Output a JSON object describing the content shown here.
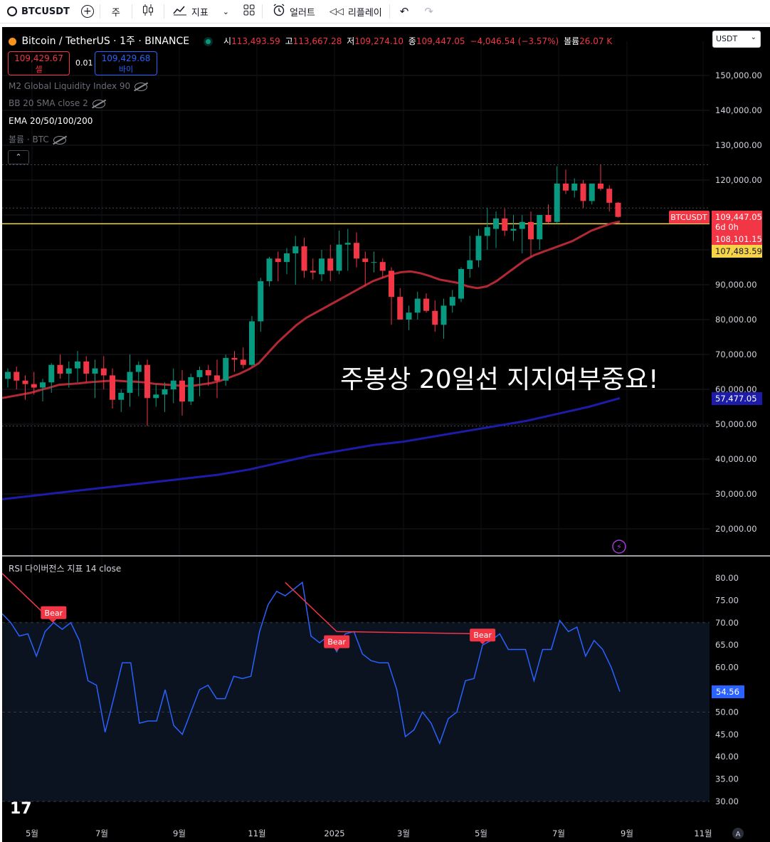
{
  "toolbar": {
    "symbol": "BTCUSDT",
    "interval": "주",
    "indicators_label": "지표",
    "alert_label": "얼러트",
    "replay_label": "리플레이"
  },
  "legend": {
    "title": "Bitcoin / TetherUS · 1주 · BINANCE",
    "open_label": "시",
    "open": "113,493.59",
    "high_label": "고",
    "high": "113,667.28",
    "low_label": "저",
    "low": "109,274.10",
    "close_label": "종",
    "close": "109,447.05",
    "change": "−4,046.54 (−3.57%)",
    "volume_label": "볼륨",
    "volume": "26.07 K",
    "sell_price": "109,429.67",
    "sell_label": "셀",
    "spread": "0.01",
    "buy_price": "109,429.68",
    "buy_label": "바이",
    "indicator1": "M2 Global Liquidity Index 90",
    "indicator2": "BB 20 SMA close 2",
    "indicator3": "EMA 20/50/100/200",
    "indicator4": "볼륨 · BTC",
    "currency": "USDT"
  },
  "price_labels": {
    "symbol_tag": "BTCUSDT",
    "last_price": "109,447.05",
    "countdown": "6d 0h",
    "ema20": "108,101.15",
    "hline": "107,483.59",
    "ema200": "57,477.05"
  },
  "annotation": "주봉상 20일선 지지여부중요!",
  "rsi": {
    "title": "RSI 다이버전스 지표 14 close",
    "last": "54.56",
    "bear_label": "Bear"
  },
  "colors": {
    "up": "#089981",
    "down": "#f23645",
    "ema20": "#b22833",
    "ema200": "#1c1ca8",
    "hline": "#f5d547",
    "rsi_line": "#2962ff",
    "bear": "#f23645"
  },
  "chart_data": [
    {
      "type": "candlestick",
      "title": "Bitcoin / TetherUS · 1주 · BINANCE",
      "y_ticks": [
        20000,
        30000,
        40000,
        50000,
        60000,
        70000,
        80000,
        90000,
        100000,
        110000,
        120000,
        130000,
        140000,
        150000
      ],
      "y_tick_labels": [
        "20,000.00",
        "30,000.00",
        "40,000.00",
        "50,000.00",
        "60,000.00",
        "70,000.00",
        "80,000.00",
        "90,000.00",
        "100,000.00",
        "110,000.00",
        "120,000.00",
        "130,000.00",
        "140,000.00",
        "150,000.00"
      ],
      "x_tick_labels": [
        "5월",
        "7월",
        "9월",
        "11월",
        "2025",
        "3월",
        "5월",
        "7월",
        "9월",
        "11월"
      ],
      "ylim": [
        10000,
        158000
      ],
      "candles": [
        [
          63000,
          66000,
          60500,
          65000
        ],
        [
          65000,
          66500,
          60000,
          62500
        ],
        [
          62500,
          64000,
          57000,
          61500
        ],
        [
          61500,
          65000,
          58500,
          60500
        ],
        [
          60500,
          63000,
          56500,
          62000
        ],
        [
          62000,
          67500,
          59000,
          67000
        ],
        [
          67000,
          70000,
          63000,
          64500
        ],
        [
          64500,
          68000,
          60500,
          66000
        ],
        [
          66000,
          71000,
          62000,
          68000
        ],
        [
          68000,
          69500,
          62000,
          64500
        ],
        [
          64500,
          68500,
          57500,
          66000
        ],
        [
          66000,
          69500,
          60000,
          64000
        ],
        [
          64000,
          66000,
          54500,
          57000
        ],
        [
          57000,
          60000,
          53500,
          59000
        ],
        [
          59000,
          70000,
          55000,
          65000
        ],
        [
          65000,
          68000,
          58000,
          67000
        ],
        [
          67000,
          68500,
          49500,
          57500
        ],
        [
          57500,
          61500,
          55000,
          58500
        ],
        [
          58500,
          62000,
          53500,
          60000
        ],
        [
          60000,
          66000,
          56000,
          62500
        ],
        [
          62500,
          65500,
          52500,
          56500
        ],
        [
          56500,
          64500,
          55500,
          63500
        ],
        [
          63500,
          66500,
          58000,
          65500
        ],
        [
          65500,
          67000,
          61000,
          64000
        ],
        [
          64000,
          68500,
          57500,
          62500
        ],
        [
          62500,
          70000,
          61000,
          69000
        ],
        [
          69000,
          71000,
          65000,
          68500
        ],
        [
          68500,
          72000,
          66000,
          67000
        ],
        [
          67000,
          81000,
          66500,
          79500
        ],
        [
          79500,
          92000,
          76500,
          91000
        ],
        [
          91000,
          98000,
          89500,
          97500
        ],
        [
          97500,
          99500,
          91000,
          96500
        ],
        [
          96500,
          100500,
          93000,
          99000
        ],
        [
          99000,
          104000,
          90000,
          101000
        ],
        [
          101000,
          103500,
          92000,
          94000
        ],
        [
          94000,
          97500,
          91500,
          93500
        ],
        [
          93000,
          100000,
          91000,
          97500
        ],
        [
          97500,
          101500,
          91000,
          94000
        ],
        [
          94000,
          105500,
          93000,
          101500
        ],
        [
          101500,
          106000,
          94000,
          102000
        ],
        [
          102000,
          105000,
          95000,
          97500
        ],
        [
          97500,
          99500,
          89500,
          96500
        ],
        [
          96500,
          99500,
          93500,
          96500
        ],
        [
          96500,
          97500,
          92000,
          94000
        ],
        [
          94000,
          95000,
          78500,
          86500
        ],
        [
          86500,
          89000,
          81000,
          80000
        ],
        [
          80000,
          84000,
          77000,
          82000
        ],
        [
          82000,
          88000,
          80000,
          86000
        ],
        [
          86000,
          87500,
          82000,
          82500
        ],
        [
          82500,
          85500,
          76500,
          78500
        ],
        [
          78500,
          86000,
          74500,
          84000
        ],
        [
          84000,
          88500,
          82000,
          86500
        ],
        [
          86000,
          95000,
          85000,
          94500
        ],
        [
          94500,
          104000,
          92000,
          97000
        ],
        [
          97000,
          106000,
          95000,
          104000
        ],
        [
          104000,
          112000,
          100000,
          106500
        ],
        [
          106000,
          111000,
          100500,
          109000
        ],
        [
          109000,
          111800,
          104000,
          105500
        ],
        [
          105500,
          110000,
          102500,
          106000
        ],
        [
          106000,
          110000,
          99000,
          108000
        ],
        [
          108000,
          111000,
          98000,
          103000
        ],
        [
          103000,
          109000,
          100000,
          110000
        ],
        [
          110000,
          113000,
          107500,
          108000
        ],
        [
          108000,
          124000,
          107500,
          119000
        ],
        [
          119000,
          123000,
          116000,
          117000
        ],
        [
          117000,
          120500,
          115000,
          119000
        ],
        [
          119000,
          120000,
          112000,
          114000
        ],
        [
          114000,
          119000,
          113000,
          119000
        ],
        [
          119000,
          124400,
          117000,
          117500
        ],
        [
          117500,
          118500,
          111000,
          113494
        ],
        [
          113494,
          113667,
          109274,
          109447
        ]
      ],
      "ema20": [
        57500,
        58000,
        58500,
        59000,
        59800,
        60500,
        61300,
        61500,
        61700,
        62000,
        62200,
        62400,
        62500,
        62300,
        62200,
        62000,
        61600,
        61400,
        61200,
        61000,
        61000,
        61400,
        61800,
        62500,
        63500,
        64500,
        65800,
        67500,
        70500,
        73500,
        76000,
        78500,
        80500,
        82000,
        83500,
        85000,
        86500,
        88000,
        89500,
        91000,
        92000,
        93000,
        93600,
        93800,
        93300,
        92500,
        91500,
        91000,
        90500,
        89500,
        89000,
        89500,
        91000,
        93000,
        95000,
        97000,
        98500,
        99500,
        100500,
        101500,
        102500,
        104000,
        105500,
        106500,
        107500,
        108100
      ],
      "ema200": [
        28500,
        29500,
        30500,
        31500,
        32500,
        33500,
        34500,
        35500,
        37000,
        39000,
        41000,
        42500,
        44000,
        45000,
        46500,
        48000,
        49500,
        51000,
        53000,
        55000,
        57477
      ],
      "hline": 107483.59
    },
    {
      "type": "line",
      "title": "RSI 다이버전스 지표 14 close",
      "y_ticks": [
        30,
        35,
        40,
        45,
        50,
        55,
        60,
        65,
        70,
        75,
        80
      ],
      "y_tick_labels": [
        "30.00",
        "35.00",
        "40.00",
        "45.00",
        "50.00",
        "55.00",
        "60.00",
        "65.00",
        "70.00",
        "75.00",
        "80.00"
      ],
      "ylim": [
        28.5,
        82
      ],
      "rsi": [
        72,
        70,
        67,
        67.5,
        62.5,
        68,
        70,
        68.5,
        70,
        66,
        57,
        56,
        45.5,
        53,
        61,
        61,
        47.5,
        48,
        48,
        55,
        47,
        45,
        50,
        55,
        56,
        53,
        53,
        58,
        57.5,
        58,
        68,
        74,
        77,
        76,
        77.5,
        79,
        67,
        65.5,
        67,
        63.5,
        67.5,
        68,
        63,
        61.5,
        61,
        61,
        55,
        44.5,
        46,
        50,
        47.5,
        43,
        48.5,
        50,
        57,
        57.5,
        65,
        66,
        67.5,
        64,
        64,
        64,
        57,
        64,
        64,
        70.5,
        68,
        69,
        62.5,
        66,
        64,
        60,
        54.56
      ],
      "bear_markers": [
        6,
        39,
        56
      ],
      "divergence_lines": [
        [
          -1,
          81,
          6,
          70
        ],
        [
          33,
          79,
          39,
          68
        ],
        [
          39,
          68,
          56,
          67.5
        ]
      ]
    }
  ]
}
